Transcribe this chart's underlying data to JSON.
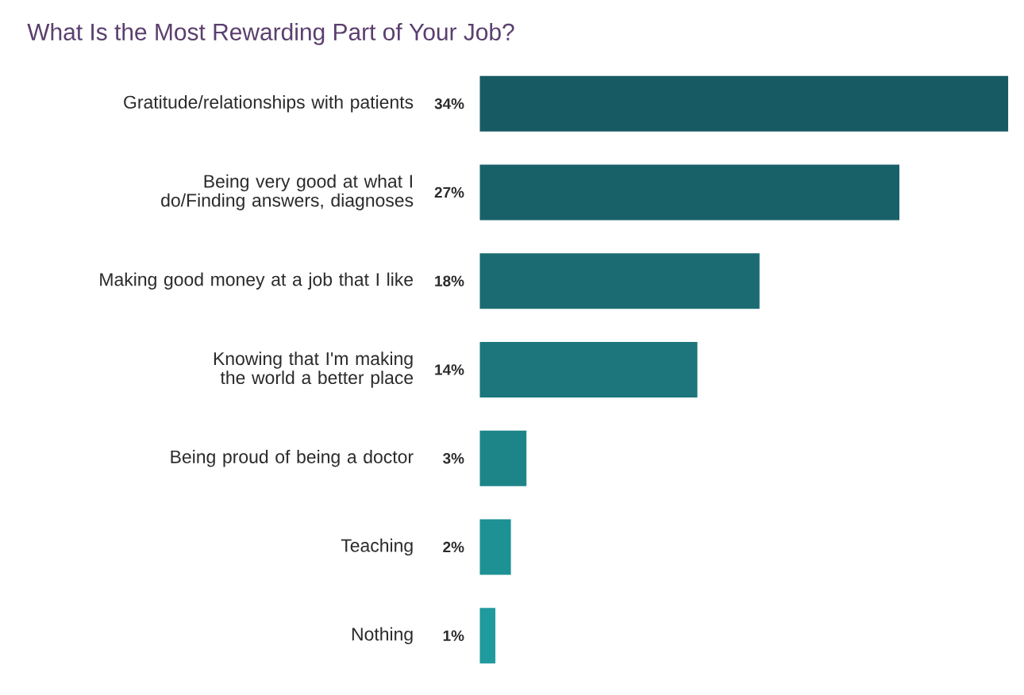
{
  "chart_data": {
    "type": "bar",
    "orientation": "horizontal",
    "title": "What Is the Most Rewarding Part of Your Job?",
    "categories": [
      "Gratitude/relationships with patients",
      "Being very good at what I do/Finding answers, diagnoses",
      "Making good money at a job that I like",
      "Knowing that I'm making the world a better place",
      "Being proud of being a doctor",
      "Teaching",
      "Nothing"
    ],
    "values": [
      34,
      27,
      18,
      14,
      3,
      2,
      1
    ],
    "value_labels": [
      "34%",
      "27%",
      "18%",
      "14%",
      "3%",
      "2%",
      "1%"
    ],
    "colors": [
      "#175a64",
      "#196169",
      "#1b6c72",
      "#1c767b",
      "#1d8588",
      "#1e9195",
      "#1f9a9d"
    ]
  }
}
